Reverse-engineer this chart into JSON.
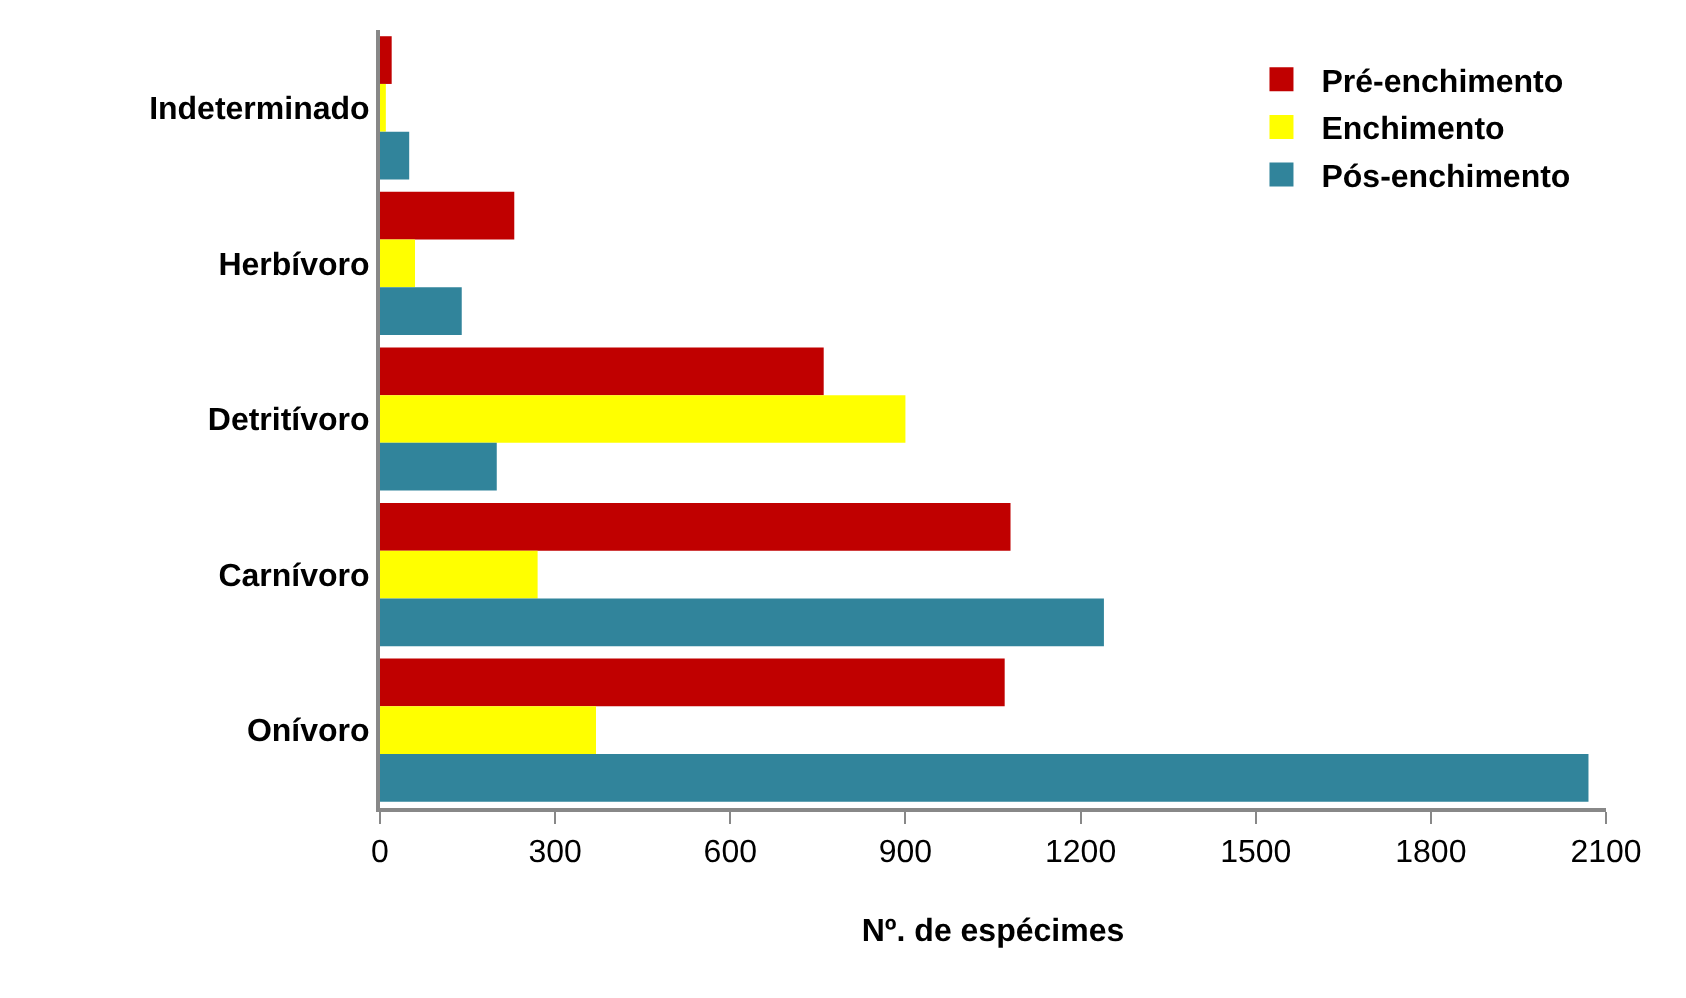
{
  "chart_data": {
    "type": "bar",
    "orientation": "horizontal",
    "xlabel": "Nº. de espécimes",
    "categories": [
      "Indeterminado",
      "Herbívoro",
      "Detritívoro",
      "Carnívoro",
      "Onívoro"
    ],
    "series": [
      {
        "name": "Pré-enchimento",
        "color": "#c00000",
        "values": [
          20,
          230,
          760,
          1080,
          1070
        ]
      },
      {
        "name": "Enchimento",
        "color": "#ffff00",
        "values": [
          10,
          60,
          900,
          270,
          370
        ]
      },
      {
        "name": "Pós-enchimento",
        "color": "#31849b",
        "values": [
          50,
          140,
          200,
          1240,
          2070
        ]
      }
    ],
    "xlim": [
      0,
      2100
    ],
    "xticks": [
      0,
      300,
      600,
      900,
      1200,
      1500,
      1800,
      2100
    ],
    "legend": "top right"
  }
}
